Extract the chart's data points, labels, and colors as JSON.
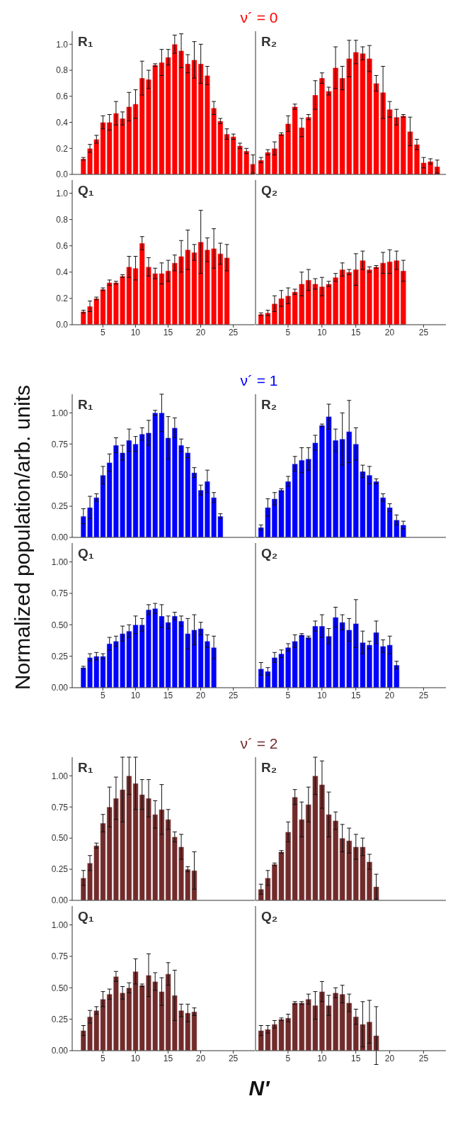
{
  "chart_data": [
    {
      "type": "bar",
      "title": "ν´ = 0",
      "annotations": [
        "R₁"
      ],
      "x": [
        2,
        3,
        4,
        5,
        6,
        7,
        8,
        9,
        10,
        11,
        12,
        13,
        14,
        15,
        16,
        17,
        18,
        19,
        20,
        21,
        22,
        23,
        24,
        25,
        26,
        27,
        28
      ],
      "series": [
        {
          "color": "#ff0000",
          "values": [
            0.12,
            0.2,
            0.27,
            0.4,
            0.4,
            0.47,
            0.43,
            0.52,
            0.54,
            0.74,
            0.73,
            0.84,
            0.86,
            0.9,
            1.0,
            0.95,
            0.85,
            0.88,
            0.85,
            0.76,
            0.51,
            0.41,
            0.31,
            0.29,
            0.22,
            0.18,
            0.08
          ],
          "errors": [
            0.01,
            0.03,
            0.03,
            0.05,
            0.06,
            0.09,
            0.05,
            0.11,
            0.11,
            0.13,
            0.07,
            0.01,
            0.1,
            0.06,
            0.07,
            0.13,
            0.07,
            0.14,
            0.15,
            0.07,
            0.05,
            0.02,
            0.04,
            0.02,
            0.02,
            0.02,
            0.07
          ]
        }
      ],
      "xlim": [
        0.3,
        28.3
      ],
      "xticks": [
        5,
        10,
        15,
        20,
        25
      ],
      "ylim": [
        0,
        1.1
      ],
      "yticks": [
        {
          "value": 0,
          "label": "0.0"
        },
        0.2,
        0.4,
        0.6,
        0.8,
        {
          "value": 1,
          "label": "1.0"
        }
      ],
      "tick_labels": "y"
    },
    {
      "type": "bar",
      "annotations": [
        "R₂"
      ],
      "x": [
        1,
        2,
        3,
        4,
        5,
        6,
        7,
        8,
        9,
        10,
        11,
        12,
        13,
        14,
        15,
        16,
        17,
        18,
        19,
        20,
        21,
        22,
        23,
        24,
        25,
        26,
        27
      ],
      "series": [
        {
          "color": "#ff0000",
          "values": [
            0.11,
            0.17,
            0.2,
            0.31,
            0.39,
            0.52,
            0.36,
            0.44,
            0.61,
            0.74,
            0.64,
            0.82,
            0.74,
            0.89,
            0.94,
            0.93,
            0.89,
            0.7,
            0.63,
            0.5,
            0.44,
            0.45,
            0.33,
            0.23,
            0.09,
            0.1,
            0.06
          ],
          "errors": [
            0.02,
            0.02,
            0.05,
            0.01,
            0.06,
            0.02,
            0.07,
            0.02,
            0.11,
            0.04,
            0.03,
            0.16,
            0.09,
            0.14,
            0.09,
            0.05,
            0.1,
            0.06,
            0.2,
            0.06,
            0.06,
            0.01,
            0.11,
            0.04,
            0.04,
            0.02,
            0.05
          ]
        }
      ],
      "xlim": [
        0.2,
        28.3
      ],
      "xticks": [
        5,
        10,
        15,
        20,
        25
      ],
      "ylim": [
        0,
        1.1
      ],
      "yticks": [
        0,
        0.2,
        0.4,
        0.6,
        0.8,
        1
      ],
      "tick_labels": false
    },
    {
      "type": "bar",
      "annotations": [
        "Q₁"
      ],
      "x": [
        2,
        3,
        4,
        5,
        6,
        7,
        8,
        9,
        10,
        11,
        12,
        13,
        14,
        15,
        16,
        17,
        18,
        19,
        20,
        21,
        22,
        23,
        24
      ],
      "series": [
        {
          "color": "#ff0000",
          "values": [
            0.1,
            0.14,
            0.2,
            0.27,
            0.32,
            0.32,
            0.37,
            0.44,
            0.43,
            0.62,
            0.44,
            0.39,
            0.39,
            0.41,
            0.47,
            0.52,
            0.57,
            0.55,
            0.63,
            0.57,
            0.58,
            0.54,
            0.51
          ],
          "errors": [
            0.01,
            0.04,
            0.01,
            0.01,
            0.02,
            0.01,
            0.01,
            0.08,
            0.09,
            0.05,
            0.07,
            0.04,
            0.08,
            0.08,
            0.06,
            0.12,
            0.15,
            0.06,
            0.24,
            0.09,
            0.15,
            0.08,
            0.1
          ]
        }
      ],
      "xlim": [
        0.3,
        28.3
      ],
      "xticks": [
        5,
        10,
        15,
        20,
        25
      ],
      "ylim": [
        0,
        1.1
      ],
      "yticks": [
        {
          "value": 0,
          "label": "0.0"
        },
        0.2,
        0.4,
        0.6,
        0.8,
        {
          "value": 1,
          "label": "1.0"
        }
      ]
    },
    {
      "type": "bar",
      "annotations": [
        "Q₂"
      ],
      "x": [
        1,
        2,
        3,
        4,
        5,
        6,
        7,
        8,
        9,
        10,
        11,
        12,
        13,
        14,
        15,
        16,
        17,
        18,
        19,
        20,
        21,
        22
      ],
      "series": [
        {
          "color": "#ff0000",
          "values": [
            0.08,
            0.09,
            0.16,
            0.2,
            0.22,
            0.25,
            0.31,
            0.34,
            0.31,
            0.29,
            0.31,
            0.36,
            0.42,
            0.4,
            0.42,
            0.49,
            0.42,
            0.44,
            0.47,
            0.48,
            0.49,
            0.41
          ],
          "errors": [
            0.01,
            0.02,
            0.06,
            0.06,
            0.06,
            0.02,
            0.09,
            0.08,
            0.04,
            0.07,
            0.02,
            0.03,
            0.05,
            0.02,
            0.12,
            0.07,
            0.02,
            0.01,
            0.08,
            0.09,
            0.07,
            0.08
          ]
        }
      ],
      "xlim": [
        0.2,
        28.3
      ],
      "xticks": [
        5,
        10,
        15,
        20,
        25
      ],
      "ylim": [
        0,
        1.1
      ],
      "yticks": [
        0,
        0.2,
        0.4,
        0.6,
        0.8,
        1
      ],
      "tick_labels": "x"
    },
    {
      "type": "bar",
      "title": "ν´ = 1",
      "ylabel": "Normalized population/arb. units",
      "annotations": [
        "R₁"
      ],
      "x": [
        2,
        3,
        4,
        5,
        6,
        7,
        8,
        9,
        10,
        11,
        12,
        13,
        14,
        15,
        16,
        17,
        18,
        19,
        20,
        21,
        22,
        23
      ],
      "series": [
        {
          "color": "#0000ff",
          "values": [
            0.17,
            0.24,
            0.32,
            0.5,
            0.6,
            0.74,
            0.68,
            0.78,
            0.75,
            0.83,
            0.84,
            1.0,
            1.0,
            0.8,
            0.88,
            0.74,
            0.68,
            0.52,
            0.38,
            0.45,
            0.32,
            0.17
          ],
          "errors": [
            0.06,
            0.09,
            0.03,
            0.07,
            0.07,
            0.06,
            0.06,
            0.09,
            0.06,
            0.05,
            0.1,
            0.02,
            0.15,
            0.17,
            0.08,
            0.05,
            0.04,
            0.04,
            0.04,
            0.09,
            0.04,
            0.02
          ]
        }
      ],
      "xlim": [
        0.3,
        28.3
      ],
      "xticks": [
        5,
        10,
        15,
        20,
        25
      ],
      "ylim": [
        0,
        1.15
      ],
      "yticks": [
        {
          "value": 0,
          "label": "0.00"
        },
        0.25,
        {
          "value": 0.5,
          "label": "0.50"
        },
        0.75,
        {
          "value": 1,
          "label": "1.00"
        }
      ],
      "tick_labels": "y"
    },
    {
      "type": "bar",
      "annotations": [
        "R₂"
      ],
      "x": [
        1,
        2,
        3,
        4,
        5,
        6,
        7,
        8,
        9,
        10,
        11,
        12,
        13,
        14,
        15,
        16,
        17,
        18,
        19,
        20,
        21,
        22
      ],
      "series": [
        {
          "color": "#0000ff",
          "values": [
            0.08,
            0.24,
            0.31,
            0.38,
            0.45,
            0.59,
            0.62,
            0.63,
            0.76,
            0.9,
            0.97,
            0.78,
            0.79,
            0.85,
            0.75,
            0.53,
            0.5,
            0.45,
            0.32,
            0.24,
            0.14,
            0.1
          ],
          "errors": [
            0.02,
            0.07,
            0.05,
            0.01,
            0.04,
            0.06,
            0.1,
            0.09,
            0.06,
            0.01,
            0.1,
            0.09,
            0.21,
            0.25,
            0.13,
            0.05,
            0.07,
            0.02,
            0.03,
            0.03,
            0.04,
            0.03
          ]
        }
      ],
      "xlim": [
        0.2,
        28.3
      ],
      "xticks": [
        5,
        10,
        15,
        20,
        25
      ],
      "ylim": [
        0,
        1.15
      ],
      "yticks": [
        0,
        0.25,
        0.5,
        0.75,
        1
      ],
      "tick_labels": false
    },
    {
      "type": "bar",
      "annotations": [
        "Q₁"
      ],
      "x": [
        2,
        3,
        4,
        5,
        6,
        7,
        8,
        9,
        10,
        11,
        12,
        13,
        14,
        15,
        16,
        17,
        18,
        19,
        20,
        21,
        22
      ],
      "series": [
        {
          "color": "#0000ff",
          "values": [
            0.16,
            0.24,
            0.25,
            0.25,
            0.35,
            0.37,
            0.43,
            0.45,
            0.5,
            0.5,
            0.62,
            0.63,
            0.57,
            0.52,
            0.57,
            0.53,
            0.43,
            0.46,
            0.47,
            0.37,
            0.32
          ],
          "errors": [
            0.01,
            0.03,
            0.03,
            0.02,
            0.05,
            0.04,
            0.06,
            0.05,
            0.07,
            0.05,
            0.04,
            0.04,
            0.09,
            0.05,
            0.03,
            0.04,
            0.12,
            0.12,
            0.05,
            0.05,
            0.09
          ]
        }
      ],
      "xlim": [
        0.3,
        28.3
      ],
      "xticks": [
        5,
        10,
        15,
        20,
        25
      ],
      "ylim": [
        0,
        1.15
      ],
      "yticks": [
        {
          "value": 0,
          "label": "0.00"
        },
        0.25,
        {
          "value": 0.5,
          "label": "0.50"
        },
        0.75,
        {
          "value": 1,
          "label": "1.00"
        }
      ]
    },
    {
      "type": "bar",
      "annotations": [
        "Q₂"
      ],
      "x": [
        1,
        2,
        3,
        4,
        5,
        6,
        7,
        8,
        9,
        10,
        11,
        12,
        13,
        14,
        15,
        16,
        17,
        18,
        19,
        20,
        21
      ],
      "series": [
        {
          "color": "#0000ff",
          "values": [
            0.15,
            0.13,
            0.24,
            0.27,
            0.32,
            0.37,
            0.42,
            0.4,
            0.49,
            0.49,
            0.41,
            0.56,
            0.52,
            0.46,
            0.51,
            0.36,
            0.34,
            0.44,
            0.33,
            0.34,
            0.18
          ],
          "errors": [
            0.05,
            0.03,
            0.04,
            0.03,
            0.03,
            0.05,
            0.01,
            0.01,
            0.04,
            0.09,
            0.06,
            0.08,
            0.06,
            0.09,
            0.19,
            0.09,
            0.03,
            0.09,
            0.05,
            0.07,
            0.03
          ]
        }
      ],
      "xlim": [
        0.2,
        28.3
      ],
      "xticks": [
        5,
        10,
        15,
        20,
        25
      ],
      "ylim": [
        0,
        1.15
      ],
      "yticks": [
        0,
        0.25,
        0.5,
        0.75,
        1
      ],
      "tick_labels": "x"
    },
    {
      "type": "bar",
      "title": "ν´ = 2",
      "annotations": [
        "R₁"
      ],
      "x": [
        2,
        3,
        4,
        5,
        6,
        7,
        8,
        9,
        10,
        11,
        12,
        13,
        14,
        15,
        16,
        17,
        18,
        19
      ],
      "series": [
        {
          "color": "#722b2b",
          "values": [
            0.18,
            0.3,
            0.44,
            0.62,
            0.75,
            0.82,
            0.89,
            1.0,
            0.94,
            0.85,
            0.82,
            0.69,
            0.73,
            0.65,
            0.51,
            0.43,
            0.25,
            0.24
          ],
          "errors": [
            0.06,
            0.06,
            0.02,
            0.07,
            0.16,
            0.17,
            0.26,
            0.15,
            0.21,
            0.12,
            0.15,
            0.11,
            0.2,
            0.08,
            0.04,
            0.1,
            0.02,
            0.15
          ]
        }
      ],
      "xlim": [
        0.3,
        28.3
      ],
      "xticks": [
        5,
        10,
        15,
        20,
        25
      ],
      "ylim": [
        0,
        1.15
      ],
      "yticks": [
        {
          "value": 0,
          "label": "0.00"
        },
        0.25,
        {
          "value": 0.5,
          "label": "0.50"
        },
        0.75,
        {
          "value": 1,
          "label": "1.00"
        }
      ],
      "tick_labels": "y"
    },
    {
      "type": "bar",
      "annotations": [
        "R₂"
      ],
      "x": [
        1,
        2,
        3,
        4,
        5,
        6,
        7,
        8,
        9,
        10,
        11,
        12,
        13,
        14,
        15,
        16,
        17,
        18
      ],
      "series": [
        {
          "color": "#722b2b",
          "values": [
            0.09,
            0.18,
            0.29,
            0.39,
            0.55,
            0.83,
            0.65,
            0.77,
            1.0,
            0.93,
            0.69,
            0.64,
            0.5,
            0.48,
            0.43,
            0.43,
            0.31,
            0.11
          ],
          "errors": [
            0.04,
            0.06,
            0.01,
            0.01,
            0.08,
            0.06,
            0.14,
            0.14,
            0.15,
            0.19,
            0.18,
            0.07,
            0.11,
            0.1,
            0.1,
            0.07,
            0.06,
            0.1
          ]
        }
      ],
      "xlim": [
        0.2,
        28.3
      ],
      "xticks": [
        5,
        10,
        15,
        20,
        25
      ],
      "ylim": [
        0,
        1.15
      ],
      "yticks": [
        0,
        0.25,
        0.5,
        0.75,
        1
      ],
      "tick_labels": false
    },
    {
      "type": "bar",
      "xlabel": "N′",
      "annotations": [
        "Q₁"
      ],
      "x": [
        2,
        3,
        4,
        5,
        6,
        7,
        8,
        9,
        10,
        11,
        12,
        13,
        14,
        15,
        16,
        17,
        18,
        19
      ],
      "series": [
        {
          "color": "#722b2b",
          "values": [
            0.16,
            0.27,
            0.32,
            0.41,
            0.45,
            0.59,
            0.46,
            0.5,
            0.63,
            0.52,
            0.6,
            0.55,
            0.47,
            0.61,
            0.44,
            0.32,
            0.3,
            0.31
          ],
          "errors": [
            0.04,
            0.05,
            0.03,
            0.06,
            0.04,
            0.04,
            0.05,
            0.04,
            0.1,
            0.01,
            0.17,
            0.07,
            0.11,
            0.09,
            0.2,
            0.05,
            0.07,
            0.03
          ]
        }
      ],
      "xlim": [
        0.3,
        28.3
      ],
      "xticks": [
        5,
        10,
        15,
        20,
        25
      ],
      "ylim": [
        0,
        1.15
      ],
      "yticks": [
        {
          "value": 0,
          "label": "0.00"
        },
        0.25,
        {
          "value": 0.5,
          "label": "0.50"
        },
        0.75,
        {
          "value": 1,
          "label": "1.00"
        }
      ]
    },
    {
      "type": "bar",
      "annotations": [
        "Q₂"
      ],
      "x": [
        1,
        2,
        3,
        4,
        5,
        6,
        7,
        8,
        9,
        10,
        11,
        12,
        13,
        14,
        15,
        16,
        17,
        18
      ],
      "series": [
        {
          "color": "#722b2b",
          "values": [
            0.16,
            0.17,
            0.21,
            0.25,
            0.26,
            0.38,
            0.38,
            0.41,
            0.36,
            0.47,
            0.36,
            0.46,
            0.45,
            0.38,
            0.27,
            0.21,
            0.23,
            0.12
          ],
          "errors": [
            0.04,
            0.03,
            0.03,
            0.01,
            0.03,
            0.01,
            0.01,
            0.04,
            0.11,
            0.08,
            0.08,
            0.04,
            0.07,
            0.07,
            0.06,
            0.18,
            0.17,
            0.23
          ]
        }
      ],
      "xlim": [
        0.2,
        28.3
      ],
      "xticks": [
        5,
        10,
        15,
        20,
        25
      ],
      "ylim": [
        0,
        1.15
      ],
      "yticks": [
        0,
        0.25,
        0.5,
        0.75,
        1
      ],
      "tick_labels": "x"
    }
  ]
}
